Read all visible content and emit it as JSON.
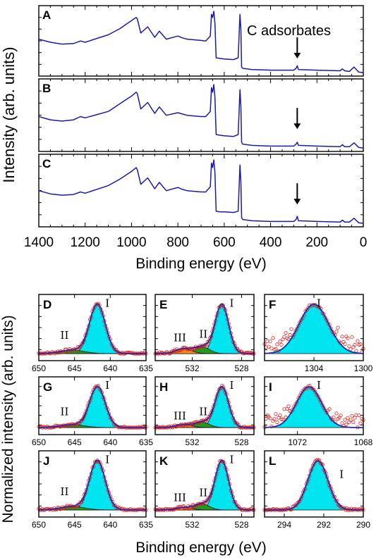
{
  "figure": {
    "top_ylabel": "Intensity (arb. units)",
    "top_xlabel": "Binding energy (eV)",
    "bottom_ylabel": "Normalized intensity (arb. units)",
    "bottom_xlabel": "Binding energy (eV)",
    "line_color": "#1a1aa8",
    "fit_color": "#2a2aa0",
    "point_color": "#e02020",
    "cyan": "#00e5f0",
    "green": "#1f9a1f",
    "orange": "#ff8c1a"
  },
  "chart_data": [
    {
      "type": "line",
      "panel": "A",
      "title": "A",
      "annotation": "C adsorbates",
      "annotation_x": 285,
      "xlim": [
        1400,
        0
      ],
      "xlabel": "Binding energy (eV)",
      "ylabel": "Intensity (arb. units)",
      "series": [
        {
          "x": [
            1400,
            1350,
            1300,
            1250,
            1220,
            1200,
            1100,
            1050,
            1000,
            980,
            975,
            960,
            930,
            900,
            880,
            850,
            800,
            780,
            760,
            700,
            680,
            660,
            655,
            650,
            645,
            640,
            635,
            620,
            600,
            560,
            540,
            532,
            528,
            525,
            520,
            480,
            400,
            300,
            290,
            285,
            280,
            200,
            100,
            90,
            80,
            60,
            40,
            20,
            0
          ],
          "y": [
            0.55,
            0.5,
            0.47,
            0.48,
            0.52,
            0.5,
            0.62,
            0.72,
            0.85,
            0.9,
            0.88,
            0.65,
            0.75,
            0.58,
            0.68,
            0.55,
            0.6,
            0.57,
            0.55,
            0.53,
            0.52,
            0.6,
            0.95,
            0.9,
            1.0,
            0.8,
            0.25,
            0.24,
            0.23,
            0.22,
            0.25,
            0.95,
            0.7,
            0.1,
            0.08,
            0.06,
            0.05,
            0.05,
            0.08,
            0.12,
            0.06,
            0.05,
            0.04,
            0.07,
            0.04,
            0.03,
            0.1,
            0.02,
            0.01
          ]
        }
      ]
    },
    {
      "type": "line",
      "panel": "B",
      "title": "B",
      "xlim": [
        1400,
        0
      ],
      "arrow_x": 285,
      "series": [
        {
          "x": [
            1400,
            1350,
            1300,
            1250,
            1220,
            1200,
            1100,
            1050,
            1000,
            980,
            975,
            960,
            930,
            900,
            880,
            850,
            800,
            780,
            760,
            700,
            680,
            660,
            655,
            650,
            645,
            640,
            635,
            620,
            600,
            560,
            540,
            532,
            528,
            525,
            520,
            480,
            400,
            300,
            290,
            285,
            280,
            200,
            100,
            90,
            80,
            60,
            40,
            20,
            0
          ],
          "y": [
            0.5,
            0.45,
            0.43,
            0.45,
            0.5,
            0.48,
            0.58,
            0.7,
            0.82,
            0.88,
            0.86,
            0.62,
            0.72,
            0.55,
            0.65,
            0.52,
            0.56,
            0.54,
            0.52,
            0.5,
            0.5,
            0.58,
            0.95,
            0.88,
            1.0,
            0.8,
            0.22,
            0.21,
            0.2,
            0.19,
            0.22,
            0.92,
            0.65,
            0.1,
            0.07,
            0.05,
            0.04,
            0.04,
            0.07,
            0.1,
            0.05,
            0.04,
            0.03,
            0.06,
            0.03,
            0.03,
            0.09,
            0.02,
            0.01
          ]
        }
      ]
    },
    {
      "type": "line",
      "panel": "C",
      "title": "C",
      "xlim": [
        1400,
        0
      ],
      "arrow_x": 285,
      "xticks": [
        1400,
        1200,
        1000,
        800,
        600,
        400,
        200,
        0
      ],
      "series": [
        {
          "x": [
            1400,
            1350,
            1300,
            1250,
            1220,
            1200,
            1100,
            1050,
            1000,
            980,
            975,
            960,
            930,
            900,
            880,
            850,
            800,
            780,
            760,
            700,
            680,
            660,
            655,
            650,
            645,
            640,
            635,
            620,
            600,
            560,
            540,
            532,
            528,
            525,
            520,
            480,
            400,
            300,
            290,
            285,
            280,
            200,
            100,
            90,
            80,
            60,
            40,
            20,
            0
          ],
          "y": [
            0.52,
            0.47,
            0.45,
            0.46,
            0.5,
            0.48,
            0.6,
            0.7,
            0.82,
            0.88,
            0.85,
            0.62,
            0.72,
            0.55,
            0.65,
            0.52,
            0.57,
            0.54,
            0.52,
            0.5,
            0.5,
            0.58,
            0.95,
            0.88,
            1.0,
            0.8,
            0.2,
            0.19,
            0.19,
            0.18,
            0.2,
            0.92,
            0.65,
            0.1,
            0.07,
            0.05,
            0.04,
            0.04,
            0.07,
            0.12,
            0.05,
            0.04,
            0.03,
            0.06,
            0.03,
            0.03,
            0.09,
            0.02,
            0.01
          ]
        }
      ]
    },
    {
      "type": "area",
      "panel": "D",
      "title": "D",
      "xlim": [
        650,
        635
      ],
      "xticks": [
        650,
        645,
        640,
        635
      ],
      "peaks": [
        {
          "label": "I",
          "center": 641.8,
          "amp": 1.0,
          "fwhm": 2.6,
          "color": "cyan"
        },
        {
          "label": "II",
          "center": 645.3,
          "amp": 0.07,
          "fwhm": 4.0,
          "color": "green"
        }
      ],
      "labels": [
        {
          "text": "I",
          "x": 640.4,
          "y": 0.95
        },
        {
          "text": "II",
          "x": 646.4,
          "y": 0.3
        }
      ]
    },
    {
      "type": "area",
      "panel": "E",
      "title": "E",
      "xlim": [
        535,
        527
      ],
      "xticks": [
        532,
        528
      ],
      "peaks": [
        {
          "label": "I",
          "center": 529.6,
          "amp": 1.0,
          "fwhm": 1.3,
          "color": "cyan"
        },
        {
          "label": "II",
          "center": 531.2,
          "amp": 0.14,
          "fwhm": 1.4,
          "color": "green"
        },
        {
          "label": "III",
          "center": 532.7,
          "amp": 0.1,
          "fwhm": 1.5,
          "color": "orange"
        }
      ],
      "labels": [
        {
          "text": "I",
          "x": 528.8,
          "y": 0.95
        },
        {
          "text": "II",
          "x": 531.1,
          "y": 0.32
        },
        {
          "text": "III",
          "x": 533.0,
          "y": 0.25
        }
      ]
    },
    {
      "type": "area",
      "panel": "F",
      "title": "F",
      "xlim": [
        1308,
        1300
      ],
      "xticks": [
        1304,
        1300
      ],
      "scatter_noise": true,
      "peaks": [
        {
          "label": "I",
          "center": 1304.0,
          "amp": 1.0,
          "fwhm": 2.8,
          "color": "cyan"
        }
      ],
      "labels": [
        {
          "text": "I",
          "x": 1303.6,
          "y": 0.95
        }
      ]
    },
    {
      "type": "area",
      "panel": "G",
      "title": "G",
      "xlim": [
        650,
        635
      ],
      "xticks": [
        650,
        645,
        640,
        635
      ],
      "peaks": [
        {
          "label": "I",
          "center": 641.8,
          "amp": 1.0,
          "fwhm": 2.6,
          "color": "cyan"
        },
        {
          "label": "II",
          "center": 645.3,
          "amp": 0.07,
          "fwhm": 4.0,
          "color": "green"
        }
      ],
      "labels": [
        {
          "text": "I",
          "x": 640.4,
          "y": 0.95
        },
        {
          "text": "II",
          "x": 646.4,
          "y": 0.3
        }
      ]
    },
    {
      "type": "area",
      "panel": "H",
      "title": "H",
      "xlim": [
        535,
        527
      ],
      "xticks": [
        532,
        528
      ],
      "peaks": [
        {
          "label": "I",
          "center": 529.6,
          "amp": 1.0,
          "fwhm": 1.3,
          "color": "cyan"
        },
        {
          "label": "II",
          "center": 531.2,
          "amp": 0.13,
          "fwhm": 1.4,
          "color": "green"
        },
        {
          "label": "III",
          "center": 532.7,
          "amp": 0.07,
          "fwhm": 1.5,
          "color": "orange"
        }
      ],
      "labels": [
        {
          "text": "I",
          "x": 528.8,
          "y": 0.95
        },
        {
          "text": "II",
          "x": 531.1,
          "y": 0.3
        },
        {
          "text": "III",
          "x": 533.0,
          "y": 0.2
        }
      ]
    },
    {
      "type": "area",
      "panel": "I",
      "title": "I",
      "xlim": [
        1074,
        1068
      ],
      "xticks": [
        1072,
        1068
      ],
      "scatter_noise": true,
      "peaks": [
        {
          "label": "I",
          "center": 1071.3,
          "amp": 1.0,
          "fwhm": 1.8,
          "color": "cyan"
        }
      ],
      "labels": [
        {
          "text": "I",
          "x": 1070.7,
          "y": 0.95
        }
      ]
    },
    {
      "type": "area",
      "panel": "J",
      "title": "J",
      "xlim": [
        650,
        635
      ],
      "xticks": [
        650,
        645,
        640,
        635
      ],
      "peaks": [
        {
          "label": "I",
          "center": 641.8,
          "amp": 1.0,
          "fwhm": 2.6,
          "color": "cyan"
        },
        {
          "label": "II",
          "center": 645.3,
          "amp": 0.07,
          "fwhm": 4.0,
          "color": "green"
        }
      ],
      "labels": [
        {
          "text": "I",
          "x": 640.4,
          "y": 0.95
        },
        {
          "text": "II",
          "x": 646.4,
          "y": 0.3
        }
      ]
    },
    {
      "type": "area",
      "panel": "K",
      "title": "K",
      "xlim": [
        535,
        527
      ],
      "xticks": [
        532,
        528
      ],
      "peaks": [
        {
          "label": "I",
          "center": 529.6,
          "amp": 1.0,
          "fwhm": 1.3,
          "color": "cyan"
        },
        {
          "label": "II",
          "center": 531.2,
          "amp": 0.12,
          "fwhm": 1.4,
          "color": "green"
        },
        {
          "label": "III",
          "center": 532.7,
          "amp": 0.05,
          "fwhm": 1.5,
          "color": "orange"
        }
      ],
      "labels": [
        {
          "text": "I",
          "x": 528.8,
          "y": 0.95
        },
        {
          "text": "II",
          "x": 531.1,
          "y": 0.28
        },
        {
          "text": "III",
          "x": 533.0,
          "y": 0.18
        }
      ]
    },
    {
      "type": "area",
      "panel": "L",
      "title": "L",
      "xlim": [
        295,
        290
      ],
      "xticks": [
        294,
        292,
        290
      ],
      "peaks": [
        {
          "label": "I",
          "center": 292.3,
          "amp": 1.0,
          "fwhm": 1.2,
          "color": "cyan"
        }
      ],
      "labels": [
        {
          "text": "I",
          "x": 291.1,
          "y": 0.65
        }
      ]
    }
  ]
}
